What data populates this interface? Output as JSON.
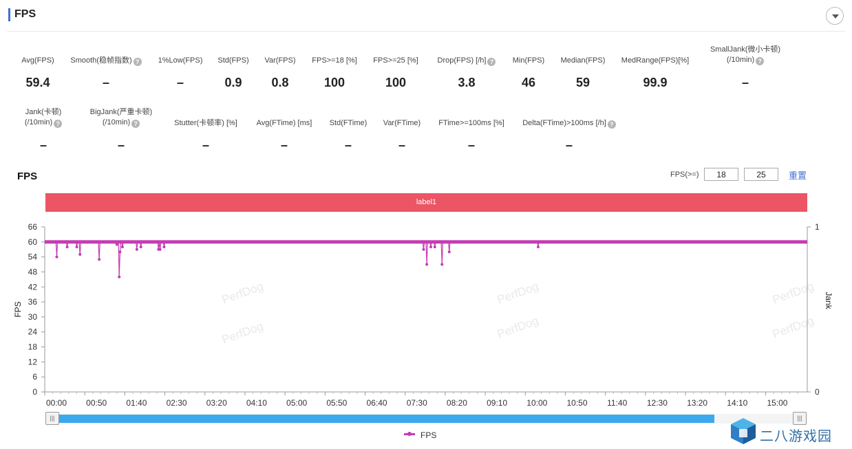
{
  "header": {
    "title": "FPS"
  },
  "metrics_row1": [
    {
      "label": "Avg(FPS)",
      "value": "59.4",
      "help": false
    },
    {
      "label": "Smooth(稳帧指数)",
      "value": "–",
      "help": true
    },
    {
      "label": "1%Low(FPS)",
      "value": "–",
      "help": false
    },
    {
      "label": "Std(FPS)",
      "value": "0.9",
      "help": false
    },
    {
      "label": "Var(FPS)",
      "value": "0.8",
      "help": false
    },
    {
      "label": "FPS>=18 [%]",
      "value": "100",
      "help": false
    },
    {
      "label": "FPS>=25 [%]",
      "value": "100",
      "help": false
    },
    {
      "label": "Drop(FPS) [/h]",
      "value": "3.8",
      "help": true
    },
    {
      "label": "Min(FPS)",
      "value": "46",
      "help": false
    },
    {
      "label": "Median(FPS)",
      "value": "59",
      "help": false
    },
    {
      "label": "MedRange(FPS)[%]",
      "value": "99.9",
      "help": false
    },
    {
      "label": "SmallJank(微小卡顿)",
      "label2": "(/10min)",
      "value": "–",
      "help": true
    }
  ],
  "metrics_row2": [
    {
      "label": "Jank(卡顿)",
      "label2": "(/10min)",
      "value": "–",
      "help": true
    },
    {
      "label": "BigJank(严重卡顿)",
      "label2": "(/10min)",
      "value": "–",
      "help": true
    },
    {
      "label": "Stutter(卡顿率) [%]",
      "value": "–",
      "help": false
    },
    {
      "label": "Avg(FTime) [ms]",
      "value": "–",
      "help": false
    },
    {
      "label": "Std(FTime)",
      "value": "–",
      "help": false
    },
    {
      "label": "Var(FTime)",
      "value": "–",
      "help": false
    },
    {
      "label": "FTime>=100ms [%]",
      "value": "–",
      "help": false
    },
    {
      "label": "Delta(FTime)>100ms [/h]",
      "value": "–",
      "help": true
    }
  ],
  "chart_section": {
    "title": "FPS",
    "threshold_label": "FPS(>=)",
    "threshold_1": "18",
    "threshold_2": "25",
    "reset_label": "重置",
    "band_label": "label1",
    "watermark": "PerfDog",
    "legend_label": "FPS",
    "series_color": "#c33cb4",
    "band_color": "#eb5564",
    "scroll_color": "#3aa9ee"
  },
  "chart_data": {
    "type": "line",
    "ylabel": "FPS",
    "y2label": "Jank",
    "ylim": [
      0,
      66
    ],
    "yticks": [
      0,
      6,
      12,
      18,
      24,
      30,
      36,
      42,
      48,
      54,
      60,
      66
    ],
    "y2lim": [
      0,
      1
    ],
    "y2ticks": [
      0,
      1
    ],
    "xlim_seconds": [
      0,
      952
    ],
    "xticks": [
      "00:00",
      "00:50",
      "01:40",
      "02:30",
      "03:20",
      "04:10",
      "05:00",
      "05:50",
      "06:40",
      "07:30",
      "08:20",
      "09:10",
      "10:00",
      "10:50",
      "11:40",
      "12:30",
      "13:20",
      "14:10",
      "15:00"
    ],
    "baseline_fps": 60,
    "dips": [
      {
        "t": 15,
        "fps": 54
      },
      {
        "t": 28,
        "fps": 58
      },
      {
        "t": 40,
        "fps": 58
      },
      {
        "t": 44,
        "fps": 55
      },
      {
        "t": 68,
        "fps": 53
      },
      {
        "t": 90,
        "fps": 59
      },
      {
        "t": 93,
        "fps": 46
      },
      {
        "t": 94,
        "fps": 56
      },
      {
        "t": 97,
        "fps": 58
      },
      {
        "t": 115,
        "fps": 57
      },
      {
        "t": 120,
        "fps": 58
      },
      {
        "t": 142,
        "fps": 57
      },
      {
        "t": 144,
        "fps": 57
      },
      {
        "t": 149,
        "fps": 58
      },
      {
        "t": 473,
        "fps": 57
      },
      {
        "t": 477,
        "fps": 51
      },
      {
        "t": 482,
        "fps": 58
      },
      {
        "t": 487,
        "fps": 58
      },
      {
        "t": 496,
        "fps": 51
      },
      {
        "t": 505,
        "fps": 56
      },
      {
        "t": 616,
        "fps": 58
      }
    ]
  },
  "brand": {
    "text": "二八游戏园"
  }
}
